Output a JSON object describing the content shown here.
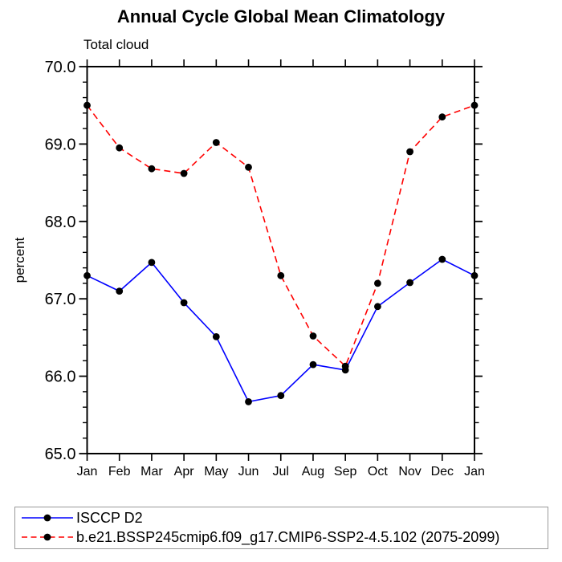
{
  "chart_data": {
    "type": "line",
    "title": "Annual Cycle Global Mean Climatology",
    "subtitle": "Total cloud",
    "ylabel": "percent",
    "xlabel": "",
    "categories": [
      "Jan",
      "Feb",
      "Mar",
      "Apr",
      "May",
      "Jun",
      "Jul",
      "Aug",
      "Sep",
      "Oct",
      "Nov",
      "Dec",
      "Jan"
    ],
    "ylim": [
      65.0,
      70.0
    ],
    "ytick_major_step": 1.0,
    "ytick_minor_step": 0.2,
    "ytick_labels": [
      "65.0",
      "66.0",
      "67.0",
      "68.0",
      "69.0",
      "70.0"
    ],
    "grid": false,
    "legend_position": "bottom-left",
    "marker_color": "#000000",
    "axis_color": "#000000",
    "series": [
      {
        "name": "ISCCP D2",
        "color": "#0000ff",
        "style": "solid",
        "marker": "filled-circle",
        "values": [
          67.3,
          67.1,
          67.47,
          66.95,
          66.51,
          65.67,
          65.75,
          66.15,
          66.08,
          66.9,
          67.21,
          67.51,
          67.3
        ]
      },
      {
        "name": "b.e21.BSSP245cmip6.f09_g17.CMIP6-SSP2-4.5.102 (2075-2099)",
        "color": "#ff0000",
        "style": "dashed",
        "marker": "filled-circle",
        "values": [
          69.5,
          68.95,
          68.68,
          68.62,
          69.02,
          68.7,
          67.3,
          66.52,
          66.13,
          67.2,
          68.9,
          69.35,
          69.5
        ]
      }
    ]
  }
}
